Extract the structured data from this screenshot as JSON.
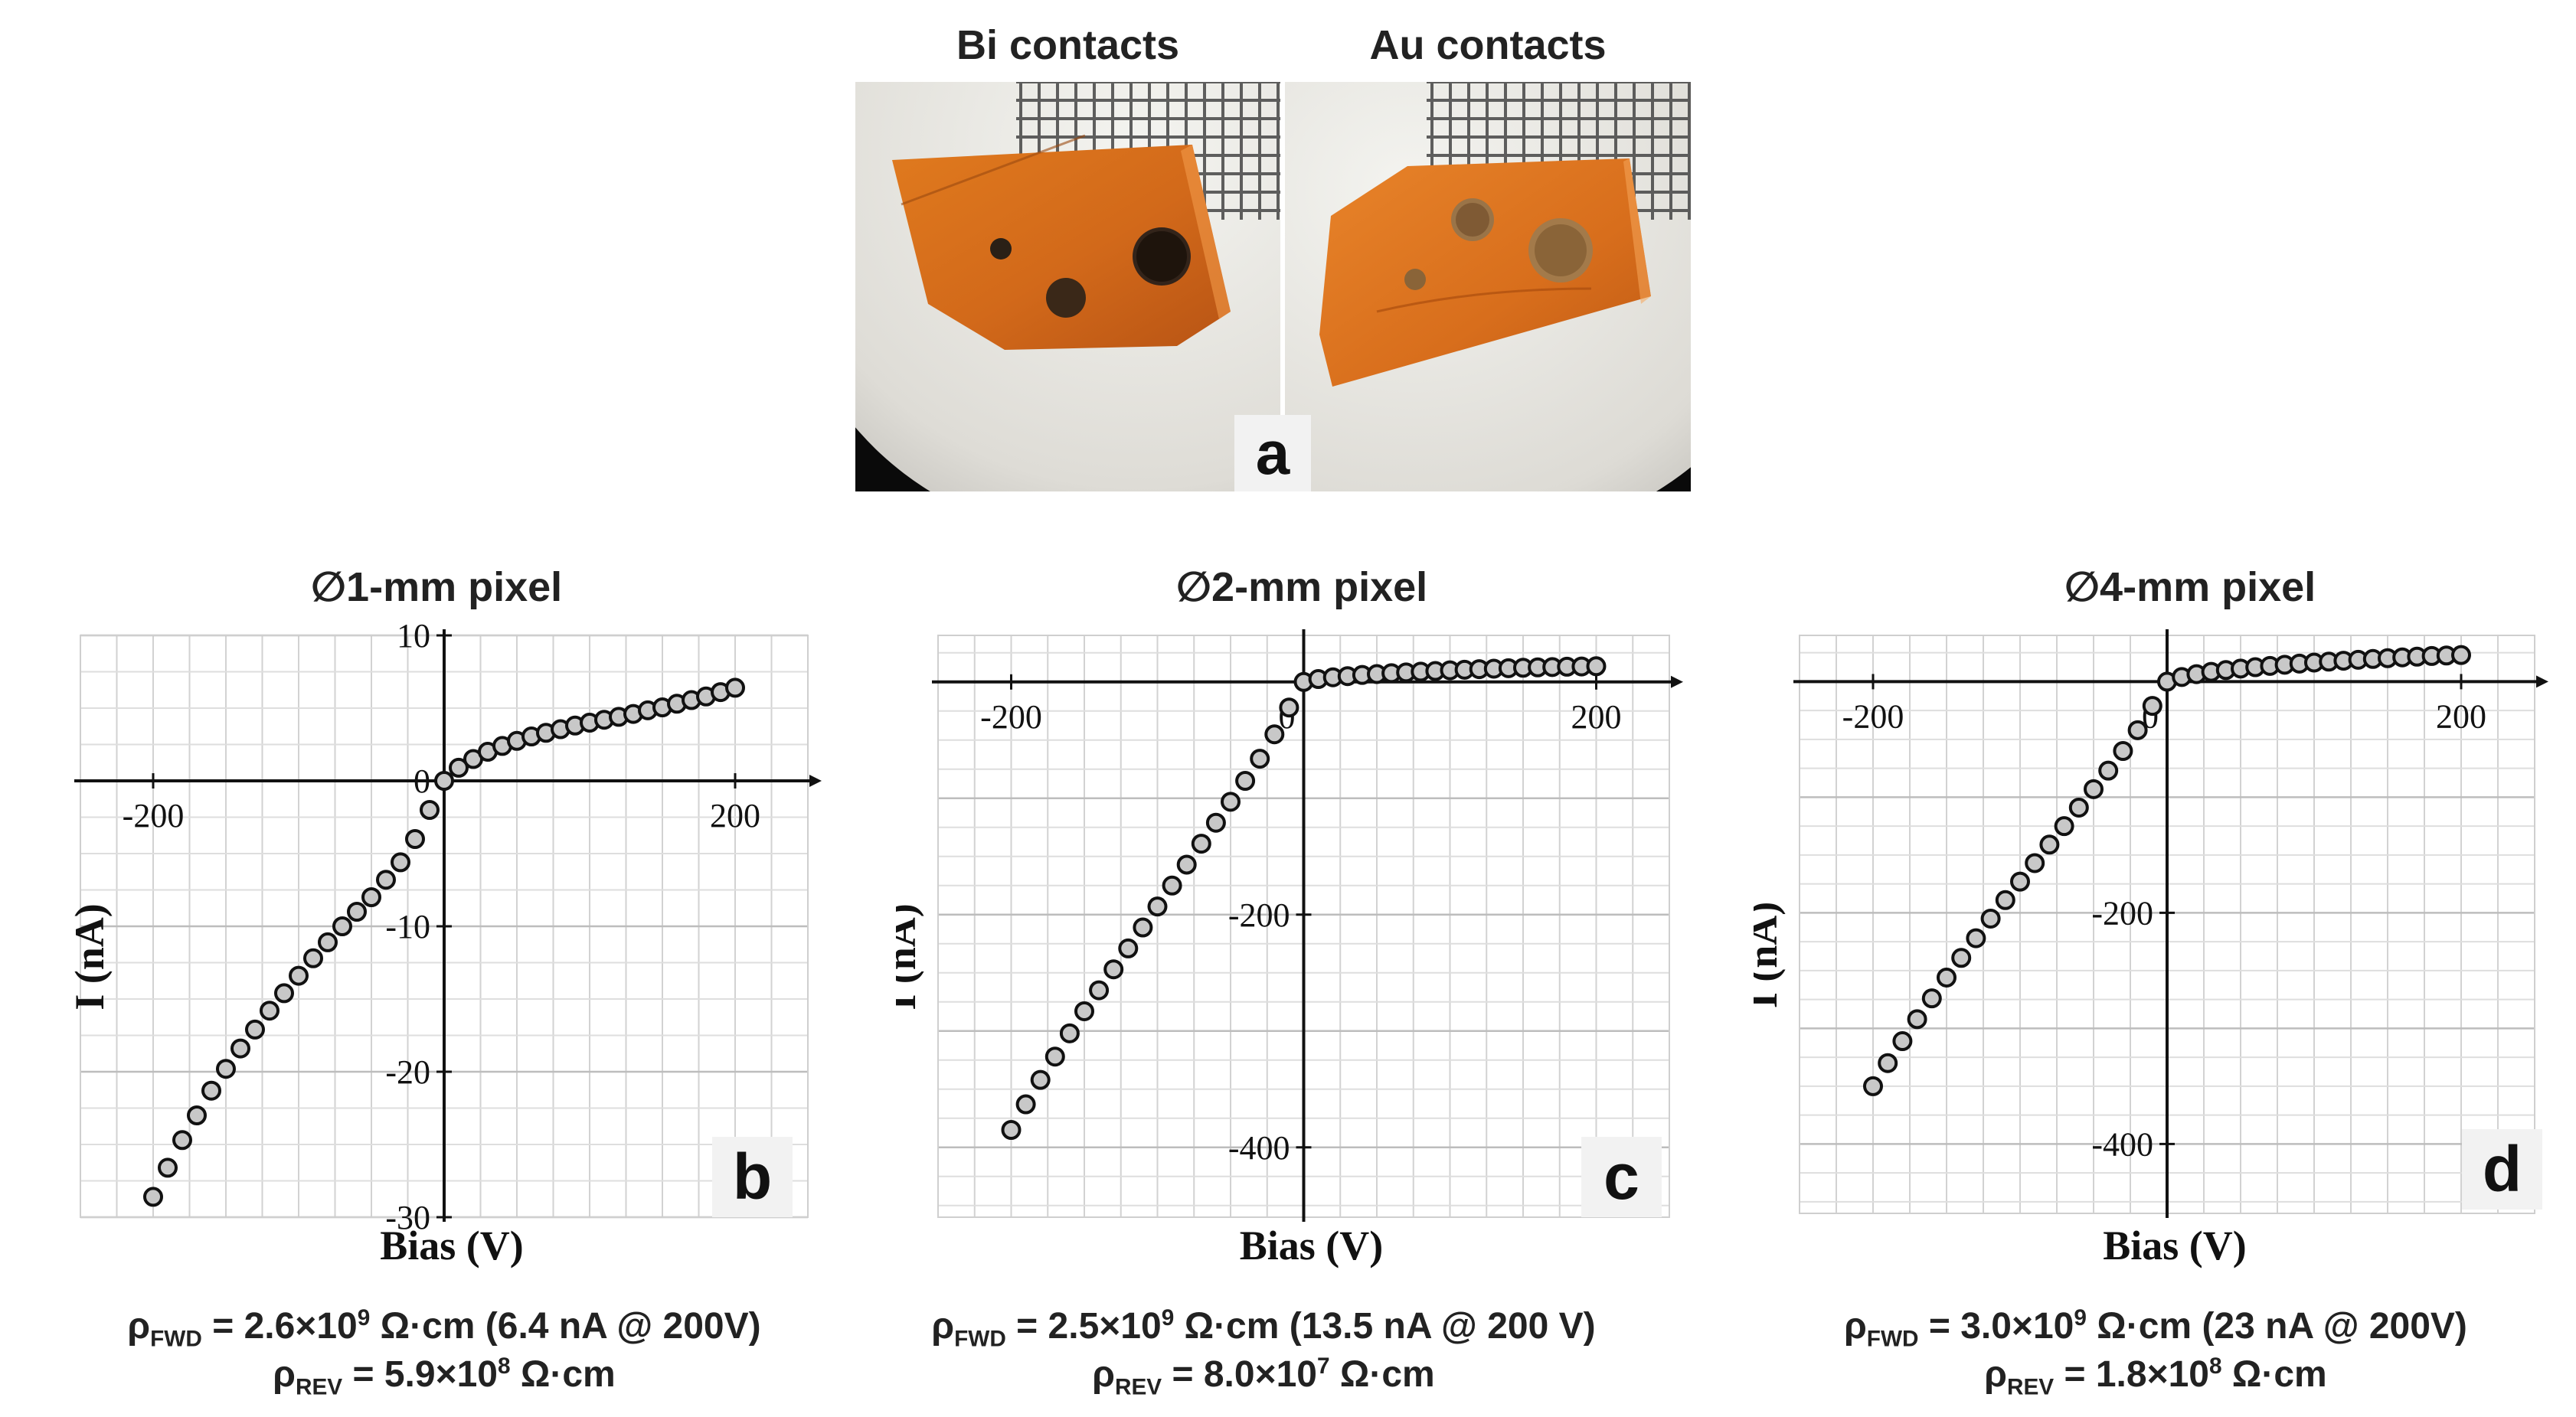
{
  "figure": {
    "panel_a": {
      "label": "a",
      "left_title": "Bi contacts",
      "right_title": "Au contacts"
    },
    "panels": [
      {
        "label": "b",
        "title": "∅1-mm pixel",
        "rho_fwd": {
          "symbol": "ρ",
          "sub": "FWD",
          "mant": "2.6×10",
          "exp": "9",
          "rest": " Ω·cm (6.4 nA @ 200V)"
        },
        "rho_rev": {
          "symbol": "ρ",
          "sub": "REV",
          "mant": "5.9×10",
          "exp": "8",
          "rest": " Ω·cm"
        }
      },
      {
        "label": "c",
        "title": "∅2-mm pixel",
        "rho_fwd": {
          "symbol": "ρ",
          "sub": "FWD",
          "mant": "2.5×10",
          "exp": "9",
          "rest": " Ω·cm (13.5 nA @ 200 V)"
        },
        "rho_rev": {
          "symbol": "ρ",
          "sub": "REV",
          "mant": "8.0×10",
          "exp": "7",
          "rest": " Ω·cm"
        }
      },
      {
        "label": "d",
        "title": "∅4-mm pixel",
        "rho_fwd": {
          "symbol": "ρ",
          "sub": "FWD",
          "mant": "3.0×10",
          "exp": "9",
          "rest": " Ω·cm (23 nA @ 200V)"
        },
        "rho_rev": {
          "symbol": "ρ",
          "sub": "REV",
          "mant": "1.8×10",
          "exp": "8",
          "rest": " Ω·cm"
        }
      }
    ]
  },
  "chart_data": [
    {
      "type": "scatter",
      "title": "∅1-mm pixel",
      "xlabel": "Bias (V)",
      "ylabel": "I (nA)",
      "xlim": [
        -250,
        250
      ],
      "ylim": [
        -30,
        10
      ],
      "xticks": [
        -200,
        200
      ],
      "xticklabels": [
        "-200",
        "200"
      ],
      "yticks": [
        10,
        0,
        -10,
        -20,
        -30
      ],
      "yticklabels": [
        "10",
        "0",
        "-10",
        "-20",
        "-30"
      ],
      "grid": true,
      "x": [
        -200,
        -190,
        -180,
        -170,
        -160,
        -150,
        -140,
        -130,
        -120,
        -110,
        -100,
        -90,
        -80,
        -70,
        -60,
        -50,
        -40,
        -30,
        -20,
        -10,
        0,
        10,
        20,
        30,
        40,
        50,
        60,
        70,
        80,
        90,
        100,
        110,
        120,
        130,
        140,
        150,
        160,
        170,
        180,
        190,
        200
      ],
      "y": [
        -28.6,
        -26.6,
        -24.7,
        -23,
        -21.3,
        -19.8,
        -18.4,
        -17.1,
        -15.8,
        -14.6,
        -13.4,
        -12.2,
        -11.1,
        -10,
        -9,
        -8,
        -6.8,
        -5.6,
        -4,
        -2,
        0,
        0.9,
        1.5,
        2,
        2.4,
        2.75,
        3.05,
        3.3,
        3.55,
        3.8,
        4,
        4.2,
        4.4,
        4.6,
        4.85,
        5.05,
        5.3,
        5.55,
        5.8,
        6.1,
        6.4
      ]
    },
    {
      "type": "scatter",
      "title": "∅2-mm pixel",
      "xlabel": "Bias (V)",
      "ylabel": "I (nA)",
      "xlim": [
        -250,
        250
      ],
      "ylim": [
        -460,
        40
      ],
      "xticks": [
        -200,
        0,
        200
      ],
      "xticklabels": [
        "-200",
        "0",
        "200"
      ],
      "yticks": [
        -200,
        -400
      ],
      "yticklabels": [
        "-200",
        "-400"
      ],
      "grid": true,
      "x": [
        -200,
        -190,
        -180,
        -170,
        -160,
        -150,
        -140,
        -130,
        -120,
        -110,
        -100,
        -90,
        -80,
        -70,
        -60,
        -50,
        -40,
        -30,
        -20,
        -10,
        0,
        10,
        20,
        30,
        40,
        50,
        60,
        70,
        80,
        90,
        100,
        110,
        120,
        130,
        140,
        150,
        160,
        170,
        180,
        190,
        200
      ],
      "y": [
        -385,
        -363,
        -342,
        -322,
        -302,
        -283,
        -265,
        -247,
        -229,
        -211,
        -193,
        -175,
        -157,
        -139,
        -121,
        -103,
        -85,
        -66,
        -45,
        -22,
        0,
        2.5,
        4,
        5,
        6,
        6.8,
        7.5,
        8.2,
        8.8,
        9.4,
        10,
        10.5,
        11,
        11.4,
        11.8,
        12.2,
        12.5,
        12.8,
        13.1,
        13.3,
        13.5
      ]
    },
    {
      "type": "scatter",
      "title": "∅4-mm pixel",
      "xlabel": "Bias (V)",
      "ylabel": "I (nA)",
      "xlim": [
        -250,
        250
      ],
      "ylim": [
        -460,
        40
      ],
      "xticks": [
        -200,
        0,
        200
      ],
      "xticklabels": [
        "-200",
        "0",
        "200"
      ],
      "yticks": [
        -200,
        -400
      ],
      "yticklabels": [
        "-200",
        "-400"
      ],
      "grid": true,
      "x": [
        -200,
        -190,
        -180,
        -170,
        -160,
        -150,
        -140,
        -130,
        -120,
        -110,
        -100,
        -90,
        -80,
        -70,
        -60,
        -50,
        -40,
        -30,
        -20,
        -10,
        0,
        10,
        20,
        30,
        40,
        50,
        60,
        70,
        80,
        90,
        100,
        110,
        120,
        130,
        140,
        150,
        160,
        170,
        180,
        190,
        200
      ],
      "y": [
        -350,
        -330,
        -311,
        -292,
        -274,
        -256,
        -239,
        -222,
        -205,
        -189,
        -173,
        -157,
        -141,
        -125,
        -109,
        -93,
        -77,
        -60,
        -42,
        -21,
        0,
        4,
        6.5,
        8.5,
        10,
        11.3,
        12.5,
        13.6,
        14.6,
        15.6,
        16.5,
        17.3,
        18.1,
        18.9,
        19.6,
        20.3,
        21,
        21.6,
        22.2,
        22.6,
        23
      ]
    }
  ]
}
